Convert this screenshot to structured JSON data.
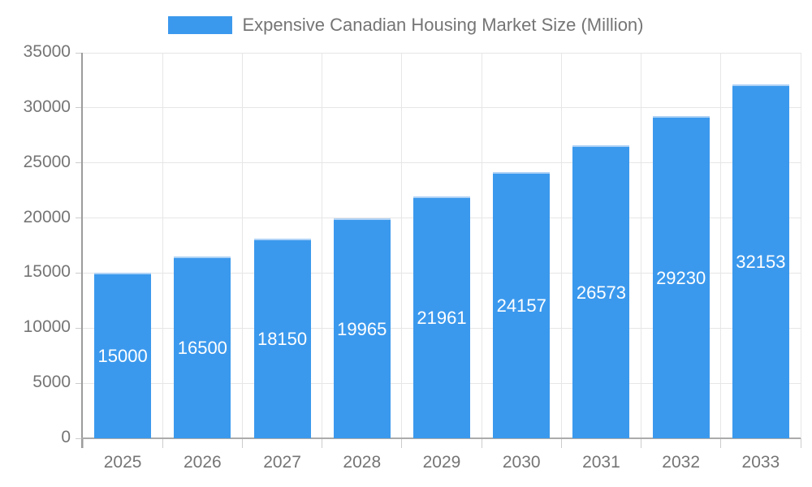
{
  "chart_data": {
    "type": "bar",
    "title": "Expensive Canadian Housing Market Size (Million)",
    "categories": [
      "2025",
      "2026",
      "2027",
      "2028",
      "2029",
      "2030",
      "2031",
      "2032",
      "2033"
    ],
    "values": [
      15000,
      16500,
      18150,
      19965,
      21961,
      24157,
      26573,
      29230,
      32153
    ],
    "value_labels": [
      "15000",
      "16500",
      "18150",
      "19965",
      "21961",
      "24157",
      "26573",
      "29230",
      "32153"
    ],
    "yticks": [
      "0",
      "5000",
      "10000",
      "15000",
      "20000",
      "25000",
      "30000",
      "35000"
    ],
    "ytick_values": [
      0,
      5000,
      10000,
      15000,
      20000,
      25000,
      30000,
      35000
    ],
    "ylim": [
      0,
      35000
    ],
    "grid": true,
    "legend_position": "top",
    "xlabel": "",
    "ylabel": ""
  },
  "colors": {
    "bar_fill": "#3b99ed",
    "bar_top_edge": "#aed2f6",
    "grid_line": "#e6e6e6",
    "tick_mark": "#cccccc",
    "y_axis_line": "#9c9c9c",
    "x_axis_line": "#ababab",
    "axis_text": "#757575",
    "bar_value_text": "#ffffff",
    "legend_text": "#757575"
  }
}
